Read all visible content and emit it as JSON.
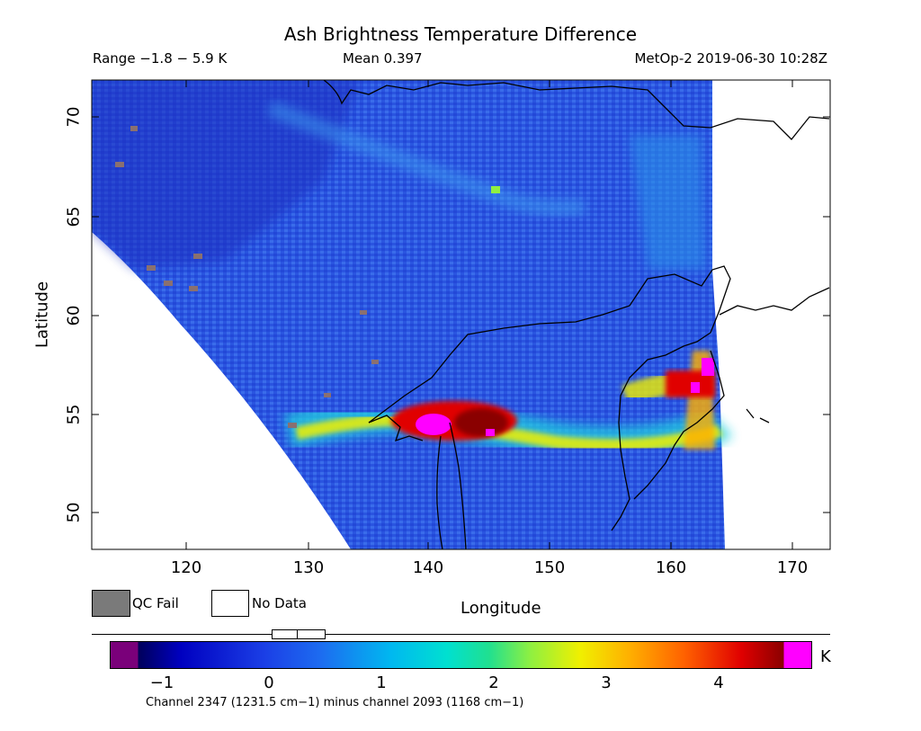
{
  "header": {
    "title": "Ash Brightness Temperature Difference",
    "range": "Range −1.8 − 5.9 K",
    "mean": "Mean 0.397",
    "satellite_time": "MetOp-2 2019-06-30 10:28Z"
  },
  "axes": {
    "ylabel": "Latitude",
    "xlabel": "Longitude",
    "x_ticks": [
      "120",
      "130",
      "140",
      "150",
      "160",
      "170"
    ],
    "y_ticks": [
      "70",
      "65",
      "60",
      "55",
      "50"
    ],
    "x_range": [
      112.5,
      172.5
    ],
    "y_range": [
      48.1,
      72.0
    ]
  },
  "legend": {
    "qc_fail": "QC Fail",
    "no_data": "No Data",
    "qc_fail_color": "#7a7a7a",
    "no_data_color": "#ffffff"
  },
  "colorbar": {
    "ticks": [
      "−1",
      "0",
      "1",
      "2",
      "3",
      "4"
    ],
    "units": "K",
    "caption": "Channel 2347 (1231.5 cm−1) minus channel 2093 (1168 cm−1)",
    "low_color": "#7a007a",
    "high_color": "#ff00ff"
  },
  "map": {
    "background_field_color": "#2a55e0",
    "ash_plume_core_color": "#ff00ff",
    "coastline_color": "#000000"
  }
}
